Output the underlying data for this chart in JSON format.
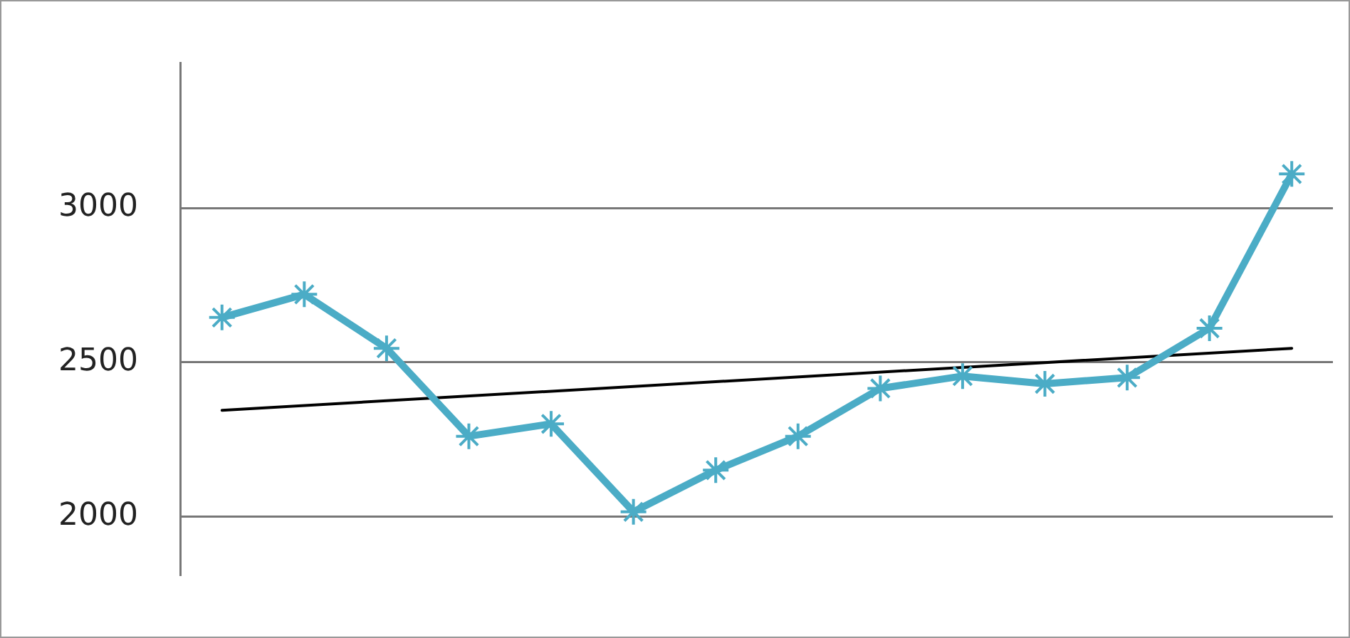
{
  "chart_data": {
    "type": "line",
    "categories": [
      null,
      null,
      null,
      null,
      null,
      null,
      null,
      null,
      null,
      null,
      null,
      null,
      null,
      null
    ],
    "series": [
      {
        "color": "#4bacc6",
        "values": [
          2645,
          2720,
          2545,
          2260,
          2300,
          2015,
          2150,
          2260,
          2415,
          2455,
          2430,
          2450,
          2610,
          3110
        ],
        "marker": "cross"
      },
      {
        "color": "#000000",
        "values": [
          2344,
          null,
          null,
          null,
          null,
          null,
          null,
          null,
          null,
          null,
          null,
          null,
          null,
          2545
        ],
        "marker": "none"
      }
    ],
    "ylim": [
      1810,
      3470
    ],
    "yticks": [
      2000,
      2500,
      3000
    ],
    "grid": "y",
    "legend": false,
    "tick_labels": "y",
    "line_style": "solid"
  }
}
